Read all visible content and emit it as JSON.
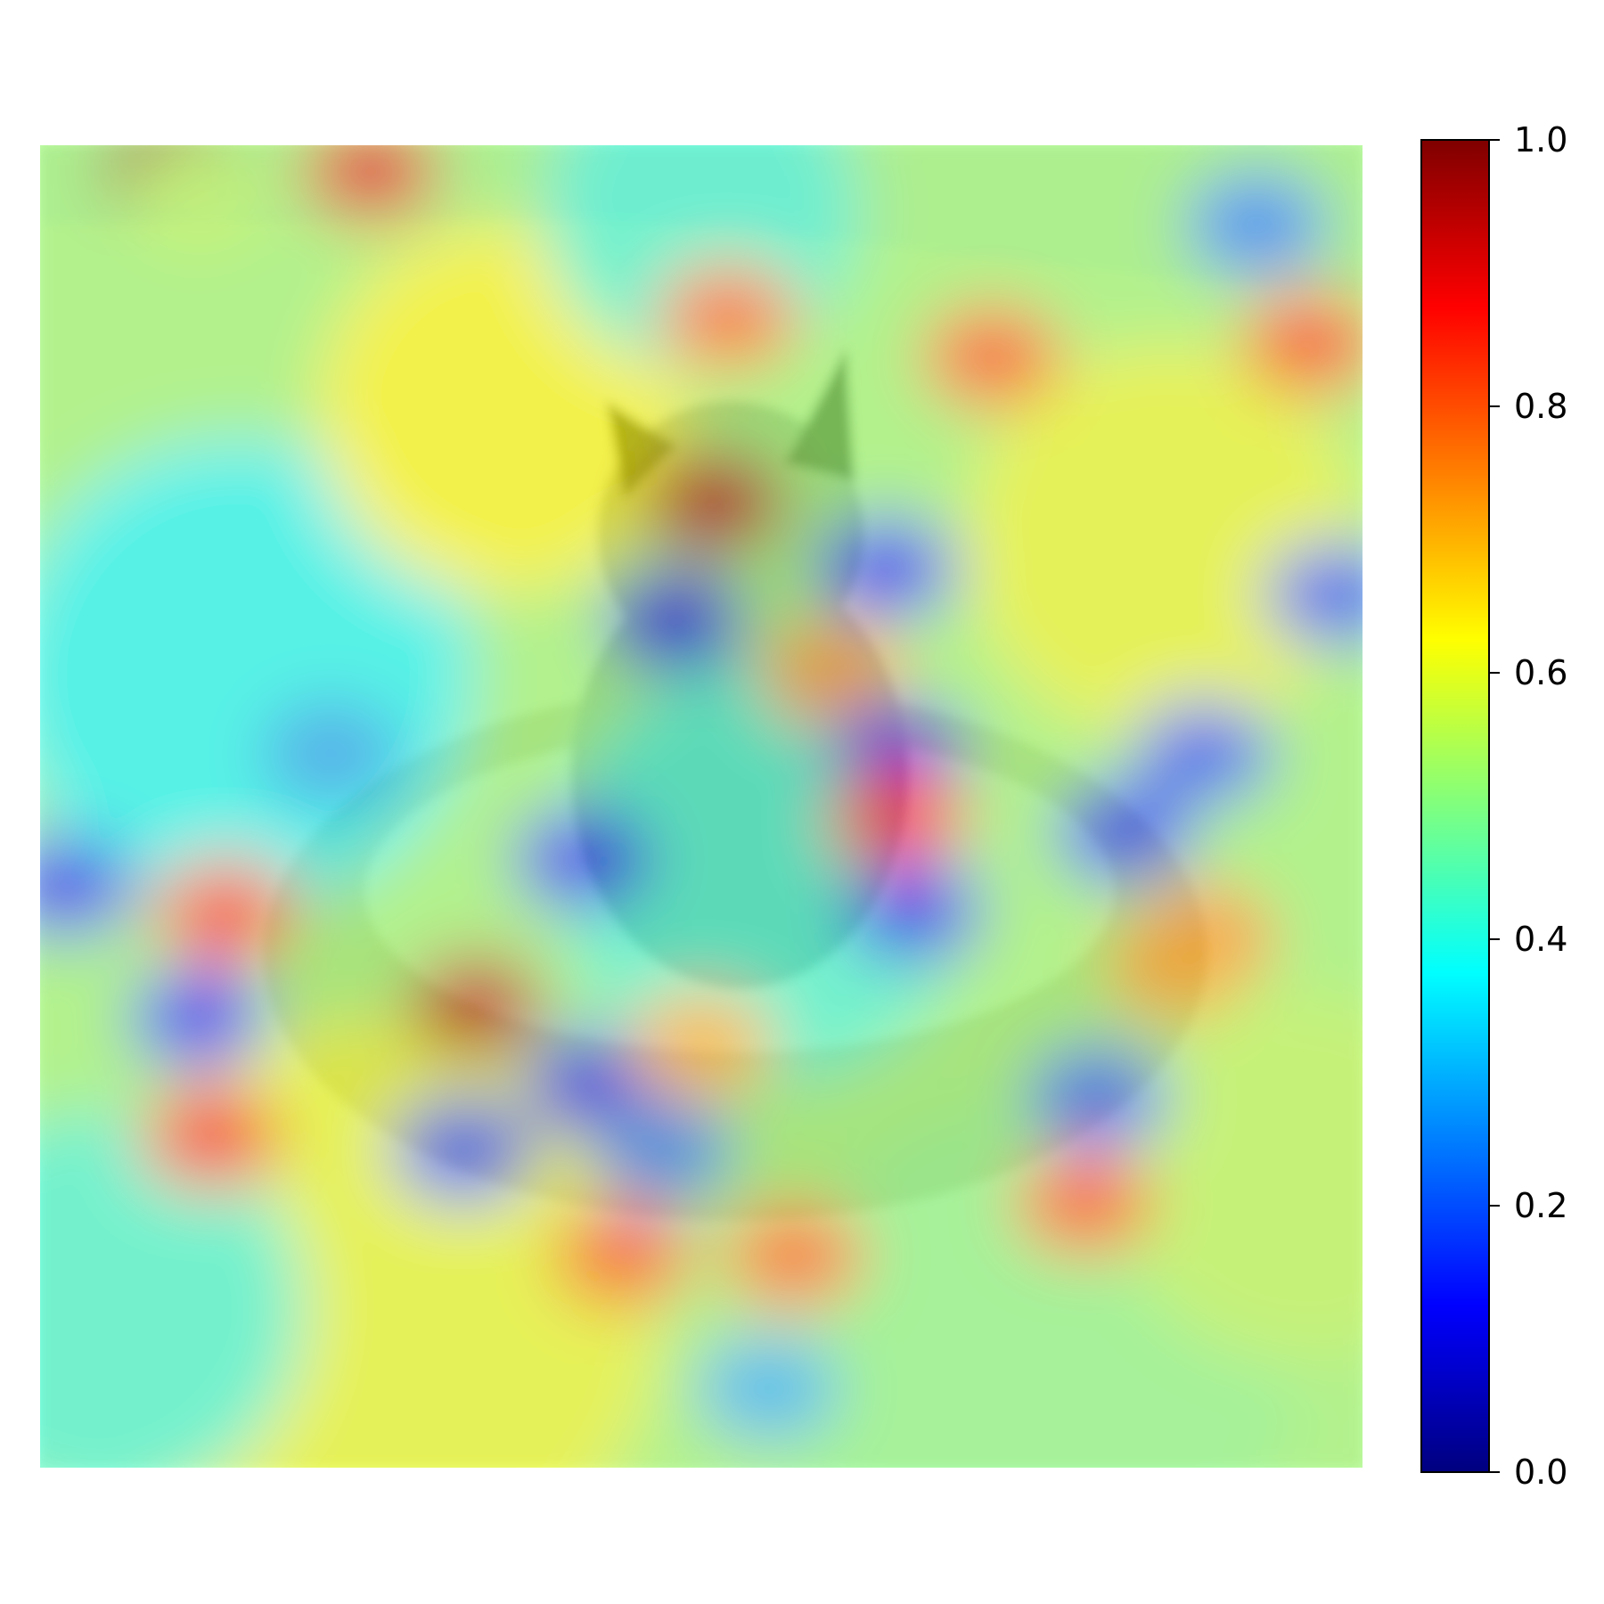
{
  "chart_data": {
    "type": "heatmap",
    "title": "",
    "xlabel": "",
    "ylabel": "",
    "description_hidden": "",
    "colormap": {
      "name": "jet",
      "stops": [
        "#00007f",
        "#0000ff",
        "#007fff",
        "#00ffff",
        "#7fff7f",
        "#ffff00",
        "#ff7f00",
        "#ff0000",
        "#7f0000"
      ]
    },
    "colorbar": {
      "range": [
        0.0,
        1.0
      ],
      "ticks": [
        0.0,
        0.2,
        0.4,
        0.6,
        0.8,
        1.0
      ],
      "tick_labels": [
        "0.0",
        "0.2",
        "0.4",
        "0.6",
        "0.8",
        "1.0"
      ]
    },
    "grid": false,
    "axes_visible": false,
    "background_colors": {
      "floor": "#e7dcc6",
      "wall": "#d8d4cc",
      "cushion": "#c9b99c",
      "cat_fur": "#a89f90",
      "cat_dark": "#4a4034"
    },
    "heat_spots": [
      {
        "x": 0.1,
        "y": 0.02,
        "value": 0.98
      },
      {
        "x": 0.25,
        "y": 0.02,
        "value": 0.9
      },
      {
        "x": 0.52,
        "y": 0.13,
        "value": 0.78
      },
      {
        "x": 0.72,
        "y": 0.16,
        "value": 0.8
      },
      {
        "x": 0.96,
        "y": 0.15,
        "value": 0.82
      },
      {
        "x": 0.51,
        "y": 0.27,
        "value": 0.95
      },
      {
        "x": 0.48,
        "y": 0.36,
        "value": 0.1
      },
      {
        "x": 0.64,
        "y": 0.32,
        "value": 0.15
      },
      {
        "x": 0.6,
        "y": 0.4,
        "value": 0.72
      },
      {
        "x": 0.65,
        "y": 0.46,
        "value": 0.12
      },
      {
        "x": 0.65,
        "y": 0.51,
        "value": 0.85
      },
      {
        "x": 0.41,
        "y": 0.54,
        "value": 0.12
      },
      {
        "x": 0.66,
        "y": 0.58,
        "value": 0.12
      },
      {
        "x": 0.33,
        "y": 0.65,
        "value": 0.95
      },
      {
        "x": 0.42,
        "y": 0.71,
        "value": 0.15
      },
      {
        "x": 0.5,
        "y": 0.68,
        "value": 0.7
      },
      {
        "x": 0.14,
        "y": 0.58,
        "value": 0.82
      },
      {
        "x": 0.02,
        "y": 0.56,
        "value": 0.15
      },
      {
        "x": 0.12,
        "y": 0.66,
        "value": 0.15
      },
      {
        "x": 0.13,
        "y": 0.75,
        "value": 0.85
      },
      {
        "x": 0.82,
        "y": 0.52,
        "value": 0.18
      },
      {
        "x": 0.88,
        "y": 0.46,
        "value": 0.2
      },
      {
        "x": 0.98,
        "y": 0.34,
        "value": 0.2
      },
      {
        "x": 0.92,
        "y": 0.06,
        "value": 0.25
      },
      {
        "x": 0.8,
        "y": 0.72,
        "value": 0.22
      },
      {
        "x": 0.79,
        "y": 0.8,
        "value": 0.8
      },
      {
        "x": 0.57,
        "y": 0.84,
        "value": 0.78
      },
      {
        "x": 0.44,
        "y": 0.84,
        "value": 0.8
      },
      {
        "x": 0.32,
        "y": 0.76,
        "value": 0.2
      },
      {
        "x": 0.47,
        "y": 0.76,
        "value": 0.25
      },
      {
        "x": 0.88,
        "y": 0.6,
        "value": 0.75
      },
      {
        "x": 0.55,
        "y": 0.94,
        "value": 0.3
      },
      {
        "x": 0.22,
        "y": 0.46,
        "value": 0.28
      },
      {
        "x": 0.86,
        "y": 0.62,
        "value": 0.72
      },
      {
        "x": 0.12,
        "y": 0.04,
        "value": 0.55
      }
    ]
  }
}
